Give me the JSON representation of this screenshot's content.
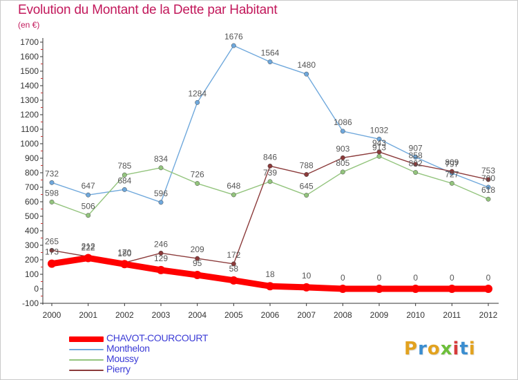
{
  "title": "Evolution du Montant de la Dette par Habitant",
  "subtitle": "(en €)",
  "logo_text": "Proxiti",
  "logo_colors": [
    "#e2a21f",
    "#3a8dd0",
    "#e2a21f",
    "#6dbf3a",
    "#d63a3a",
    "#3a8dd0",
    "#e2a21f"
  ],
  "chart_data": {
    "type": "line",
    "x": [
      "2000",
      "2001",
      "2002",
      "2003",
      "2004",
      "2005",
      "2006",
      "2007",
      "2008",
      "2009",
      "2010",
      "2011",
      "2012"
    ],
    "ylim": [
      -100,
      1700
    ],
    "yticks": [
      -100,
      0,
      100,
      200,
      300,
      400,
      500,
      600,
      700,
      800,
      900,
      1000,
      1100,
      1200,
      1300,
      1400,
      1500,
      1600,
      1700
    ],
    "grid": false,
    "legend_position": "bottom-left",
    "series": [
      {
        "name": "CHAVOT-COURCOURT",
        "color": "#ff0000",
        "legend_text_color": "#3b3bd6",
        "values": [
          173,
          212,
          170,
          129,
          95,
          58,
          18,
          10,
          0,
          0,
          0,
          0,
          0
        ]
      },
      {
        "name": "Monthelon",
        "color": "#6fa8dc",
        "legend_text_color": "#3b3bd6",
        "values": [
          732,
          647,
          684,
          596,
          1284,
          1676,
          1564,
          1480,
          1086,
          1032,
          907,
          797,
          700
        ]
      },
      {
        "name": "Moussy",
        "color": "#93c47d",
        "legend_text_color": "#3b3bd6",
        "values": [
          598,
          506,
          785,
          834,
          726,
          648,
          739,
          645,
          805,
          913,
          802,
          727,
          618
        ]
      },
      {
        "name": "Pierry",
        "color": "#8b3a3a",
        "legend_text_color": "#3b3bd6",
        "values": [
          265,
          222,
          180,
          246,
          209,
          172,
          846,
          788,
          903,
          943,
          858,
          809,
          753
        ]
      }
    ]
  }
}
